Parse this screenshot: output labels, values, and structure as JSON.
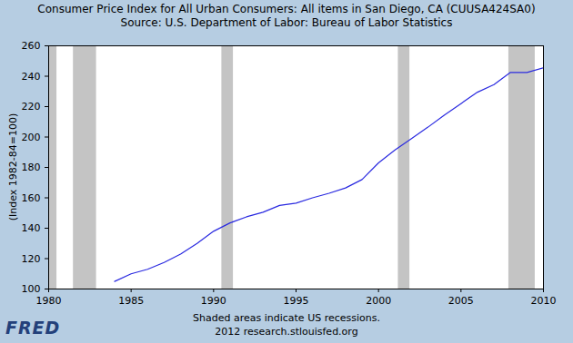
{
  "chart_data": {
    "type": "line",
    "title": "Consumer Price Index for All Urban Consumers: All items in San Diego, CA (CUUSA424SA0)",
    "subtitle": "Source: U.S. Department of Labor: Bureau of Labor Statistics",
    "y_label": "(Index 1982-84=100)",
    "footer": [
      "Shaded areas indicate US recessions.",
      "2012 research.stlouisfed.org"
    ],
    "logo": "FRED",
    "x": [
      1984,
      1985,
      1986,
      1987,
      1988,
      1989,
      1990,
      1991,
      1992,
      1993,
      1994,
      1995,
      1996,
      1997,
      1998,
      1999,
      2000,
      2001,
      2002,
      2003,
      2004,
      2005,
      2006,
      2007,
      2008,
      2009,
      2010
    ],
    "values": [
      105,
      110,
      113,
      117.5,
      123,
      130,
      138,
      143.5,
      147.5,
      150.5,
      155,
      156.5,
      160,
      163,
      166.5,
      172,
      183,
      191.5,
      199,
      206.5,
      214.5,
      222,
      229.5,
      234.5,
      242.5,
      242.5,
      245.5
    ],
    "color": "#2a2ae0",
    "recessions": [
      [
        1980.0,
        1980.5
      ],
      [
        1981.5,
        1982.9
      ],
      [
        1990.5,
        1991.2
      ],
      [
        2001.2,
        2001.9
      ],
      [
        2007.9,
        2009.5
      ]
    ],
    "xlim": [
      1980,
      2010
    ],
    "xticks": [
      1980,
      1985,
      1990,
      1995,
      2000,
      2005,
      2010
    ],
    "ylim": [
      100,
      260
    ],
    "yticks": [
      100,
      120,
      140,
      160,
      180,
      200,
      220,
      240,
      260
    ],
    "grid": false
  }
}
